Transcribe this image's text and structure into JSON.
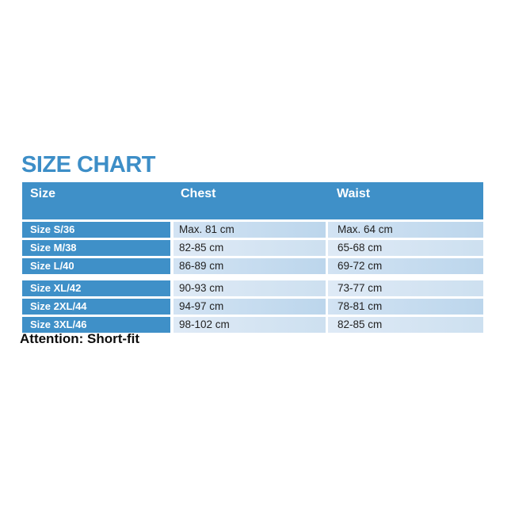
{
  "page": {
    "title": "SIZE CHART",
    "attention": "Attention: Short-fit"
  },
  "colors": {
    "header_blue": "#3f90c8",
    "title_blue": "#3d8ec7",
    "light_cell_odd": "#c6dcef",
    "light_cell_even": "#d9e6f3",
    "value_text": "#222222",
    "note_text": "#0d0d0d"
  },
  "table": {
    "columns": [
      "Size",
      "Chest",
      "Waist"
    ],
    "rows": [
      {
        "size": "Size S/36",
        "chest": "Max. 81 cm",
        "waist": "Max. 64 cm"
      },
      {
        "size": "Size M/38",
        "chest": "82-85 cm",
        "waist": "65-68 cm"
      },
      {
        "size": "Size L/40",
        "chest": "86-89 cm",
        "waist": "69-72 cm"
      },
      {
        "size": "Size XL/42",
        "chest": "90-93 cm",
        "waist": "73-77 cm"
      },
      {
        "size": "Size 2XL/44",
        "chest": "94-97 cm",
        "waist": "78-81 cm"
      },
      {
        "size": "Size 3XL/46",
        "chest": "98-102 cm",
        "waist": "82-85 cm"
      }
    ]
  },
  "chart_data": {
    "type": "table",
    "title": "SIZE CHART",
    "columns": [
      "Size",
      "Chest",
      "Waist"
    ],
    "rows": [
      [
        "Size S/36",
        "Max. 81 cm",
        "Max. 64 cm"
      ],
      [
        "Size M/38",
        "82-85 cm",
        "65-68 cm"
      ],
      [
        "Size L/40",
        "86-89 cm",
        "69-72 cm"
      ],
      [
        "Size XL/42",
        "90-93 cm",
        "73-77 cm"
      ],
      [
        "Size 2XL/44",
        "94-97 cm",
        "78-81 cm"
      ],
      [
        "Size 3XL/46",
        "98-102 cm",
        "82-85 cm"
      ]
    ],
    "footnote": "Attention: Short-fit",
    "units": "cm"
  }
}
